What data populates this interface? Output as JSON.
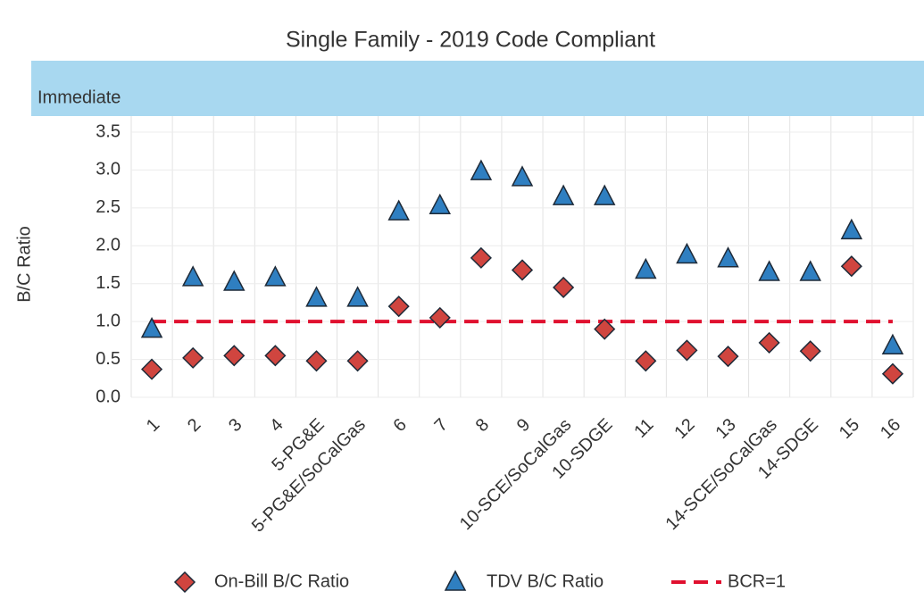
{
  "chart_data": {
    "type": "scatter",
    "title": "Single Family - 2019 Code Compliant",
    "band_label": "Immediate",
    "y_label": "B/C Ratio",
    "categories": [
      "1",
      "2",
      "3",
      "4",
      "5-PG&E",
      "5-PG&E/SoCalGas",
      "6",
      "7",
      "8",
      "9",
      "10-SCE/SoCalGas",
      "10-SDGE",
      "11",
      "12",
      "13",
      "14-SCE/SoCalGas",
      "14-SDGE",
      "15",
      "16"
    ],
    "series": [
      {
        "name": "On-Bill B/C Ratio",
        "color": "#d0453f",
        "marker": "diamond",
        "values": [
          0.37,
          0.52,
          0.55,
          0.55,
          0.48,
          0.48,
          1.2,
          1.05,
          1.84,
          1.68,
          1.45,
          0.9,
          0.48,
          0.62,
          0.54,
          0.72,
          0.61,
          1.73,
          0.31
        ]
      },
      {
        "name": "TDV B/C Ratio",
        "color": "#2f7fc1",
        "marker": "triangle",
        "values": [
          0.9,
          1.58,
          1.52,
          1.58,
          1.31,
          1.31,
          2.45,
          2.53,
          2.98,
          2.9,
          2.65,
          2.65,
          1.68,
          1.88,
          1.83,
          1.65,
          1.65,
          2.2,
          0.68
        ]
      }
    ],
    "reference_line": {
      "name": "BCR=1",
      "value": 1,
      "color": "#e0102f"
    },
    "ylim": [
      0,
      3.5
    ],
    "yticks": [
      {
        "value": 0,
        "label": "0.0"
      },
      {
        "value": 0.5,
        "label": "0.5"
      },
      {
        "value": 1,
        "label": "1.0"
      },
      {
        "value": 1.5,
        "label": "1.5"
      },
      {
        "value": 2,
        "label": "2.0"
      },
      {
        "value": 2.5,
        "label": "2.5"
      },
      {
        "value": 3,
        "label": "3.0"
      },
      {
        "value": 3.5,
        "label": "3.5"
      }
    ],
    "grid": true
  }
}
